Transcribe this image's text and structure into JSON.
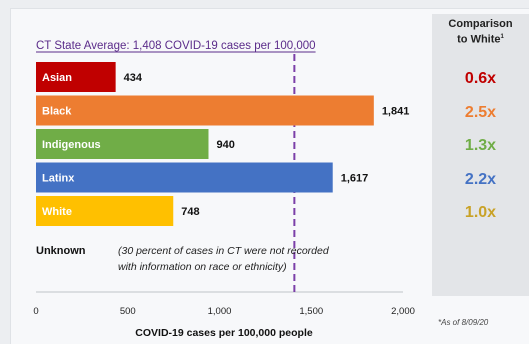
{
  "chart_data": {
    "type": "bar",
    "orientation": "horizontal",
    "title": "CT State Average: 1,408 COVID-19 cases per 100,000",
    "xlabel": "COVID-19 cases per 100,000 people",
    "xlim": [
      0,
      2000
    ],
    "xticks": [
      0,
      500,
      1000,
      1500,
      2000
    ],
    "xtick_labels": [
      "0",
      "500",
      "1,000",
      "1,500",
      "2,000"
    ],
    "reference_line": {
      "value": 1408,
      "style": "dashed",
      "color": "#7b3fa8"
    },
    "categories": [
      "Asian",
      "Black",
      "Indigenous",
      "Latinx",
      "White"
    ],
    "values": [
      434,
      1841,
      940,
      1617,
      748
    ],
    "value_labels": [
      "434",
      "1,841",
      "940",
      "1,617",
      "748"
    ],
    "colors": [
      "#c00000",
      "#ed7d31",
      "#70ad47",
      "#4472c4",
      "#ffc000"
    ],
    "unknown": {
      "label": "Unknown",
      "note_line1": "(30 percent of cases in CT were not recorded",
      "note_line2": "with information on race or ethnicity)"
    }
  },
  "comparison": {
    "title_line1": "Comparison",
    "title_line2": "to White",
    "marker": "1",
    "values": [
      "0.6x",
      "2.5x",
      "1.3x",
      "2.2x",
      "1.0x"
    ]
  },
  "footnote": "*As of 8/09/20"
}
